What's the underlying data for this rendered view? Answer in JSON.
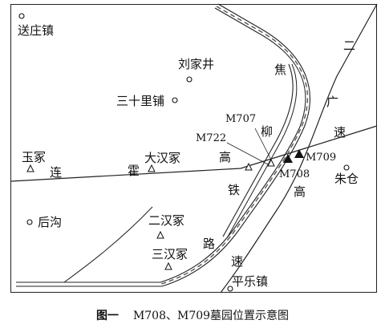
{
  "caption": {
    "figure": "图一",
    "text": "M708、M709墓园位置示意图"
  },
  "places": {
    "songzhuang": "送庄镇",
    "liujiajing": "刘家井",
    "sanshilipu": "三十里铺",
    "yuzhong": "玉冢",
    "dahanzhong": "大汉冢",
    "erhanzhong": "二汉冢",
    "sanhanzhong": "三汉冢",
    "hougou": "后沟",
    "zhucang": "朱仓",
    "pingle": "平乐镇"
  },
  "roads": {
    "lianhuo": [
      "连",
      "霍"
    ],
    "gaosu_lh": [
      "高",
      "速"
    ],
    "jiaoliu": [
      "焦",
      "柳"
    ],
    "tielu": [
      "铁",
      "路"
    ],
    "erguang": [
      "二",
      "广"
    ],
    "gaosu_eg": [
      "速",
      "高"
    ]
  },
  "tombs": {
    "m707": "M707",
    "m722": "M722",
    "m708": "M708",
    "m709": "M709"
  },
  "legend_symbols": {
    "town": "circle",
    "mound": "triangle-outline",
    "tomb": "triangle-filled"
  }
}
